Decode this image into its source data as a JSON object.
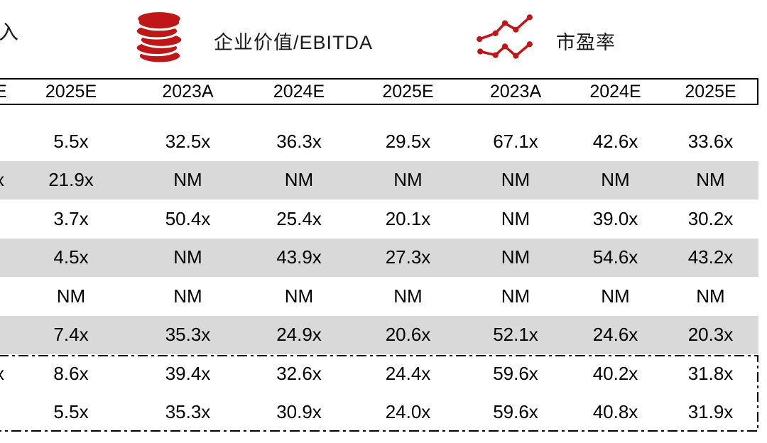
{
  "colors": {
    "accent_red": "#bf1717",
    "row_band": "#d9d9d9",
    "border": "#000000",
    "text": "#000000"
  },
  "legend": {
    "partial_left_label": "入",
    "groups": [
      {
        "icon": "coins-icon",
        "label": "企业价值/EBITDA"
      },
      {
        "icon": "line-chart-icon",
        "label": "市盈率"
      }
    ]
  },
  "table": {
    "header_partial": "E",
    "headers": [
      "2025E",
      "2023A",
      "2024E",
      "2025E",
      "2023A",
      "2024E",
      "2025E"
    ],
    "rows": [
      {
        "partial": "",
        "band": false,
        "summary": false,
        "values": [
          "5.5x",
          "32.5x",
          "36.3x",
          "29.5x",
          "67.1x",
          "42.6x",
          "33.6x"
        ]
      },
      {
        "partial": "x",
        "band": true,
        "summary": false,
        "values": [
          "21.9x",
          "NM",
          "NM",
          "NM",
          "NM",
          "NM",
          "NM"
        ]
      },
      {
        "partial": "",
        "band": false,
        "summary": false,
        "values": [
          "3.7x",
          "50.4x",
          "25.4x",
          "20.1x",
          "NM",
          "39.0x",
          "30.2x"
        ]
      },
      {
        "partial": "",
        "band": true,
        "summary": false,
        "values": [
          "4.5x",
          "NM",
          "43.9x",
          "27.3x",
          "NM",
          "54.6x",
          "43.2x"
        ]
      },
      {
        "partial": "",
        "band": false,
        "summary": false,
        "values": [
          "NM",
          "NM",
          "NM",
          "NM",
          "NM",
          "NM",
          "NM"
        ]
      },
      {
        "partial": "",
        "band": true,
        "summary": false,
        "values": [
          "7.4x",
          "35.3x",
          "24.9x",
          "20.6x",
          "52.1x",
          "24.6x",
          "20.3x"
        ]
      },
      {
        "partial": "x",
        "band": false,
        "summary": true,
        "values": [
          "8.6x",
          "39.4x",
          "32.6x",
          "24.4x",
          "59.6x",
          "40.2x",
          "31.8x"
        ]
      },
      {
        "partial": "",
        "band": false,
        "summary": true,
        "values": [
          "5.5x",
          "35.3x",
          "30.9x",
          "24.0x",
          "59.6x",
          "40.8x",
          "31.9x"
        ]
      }
    ]
  }
}
